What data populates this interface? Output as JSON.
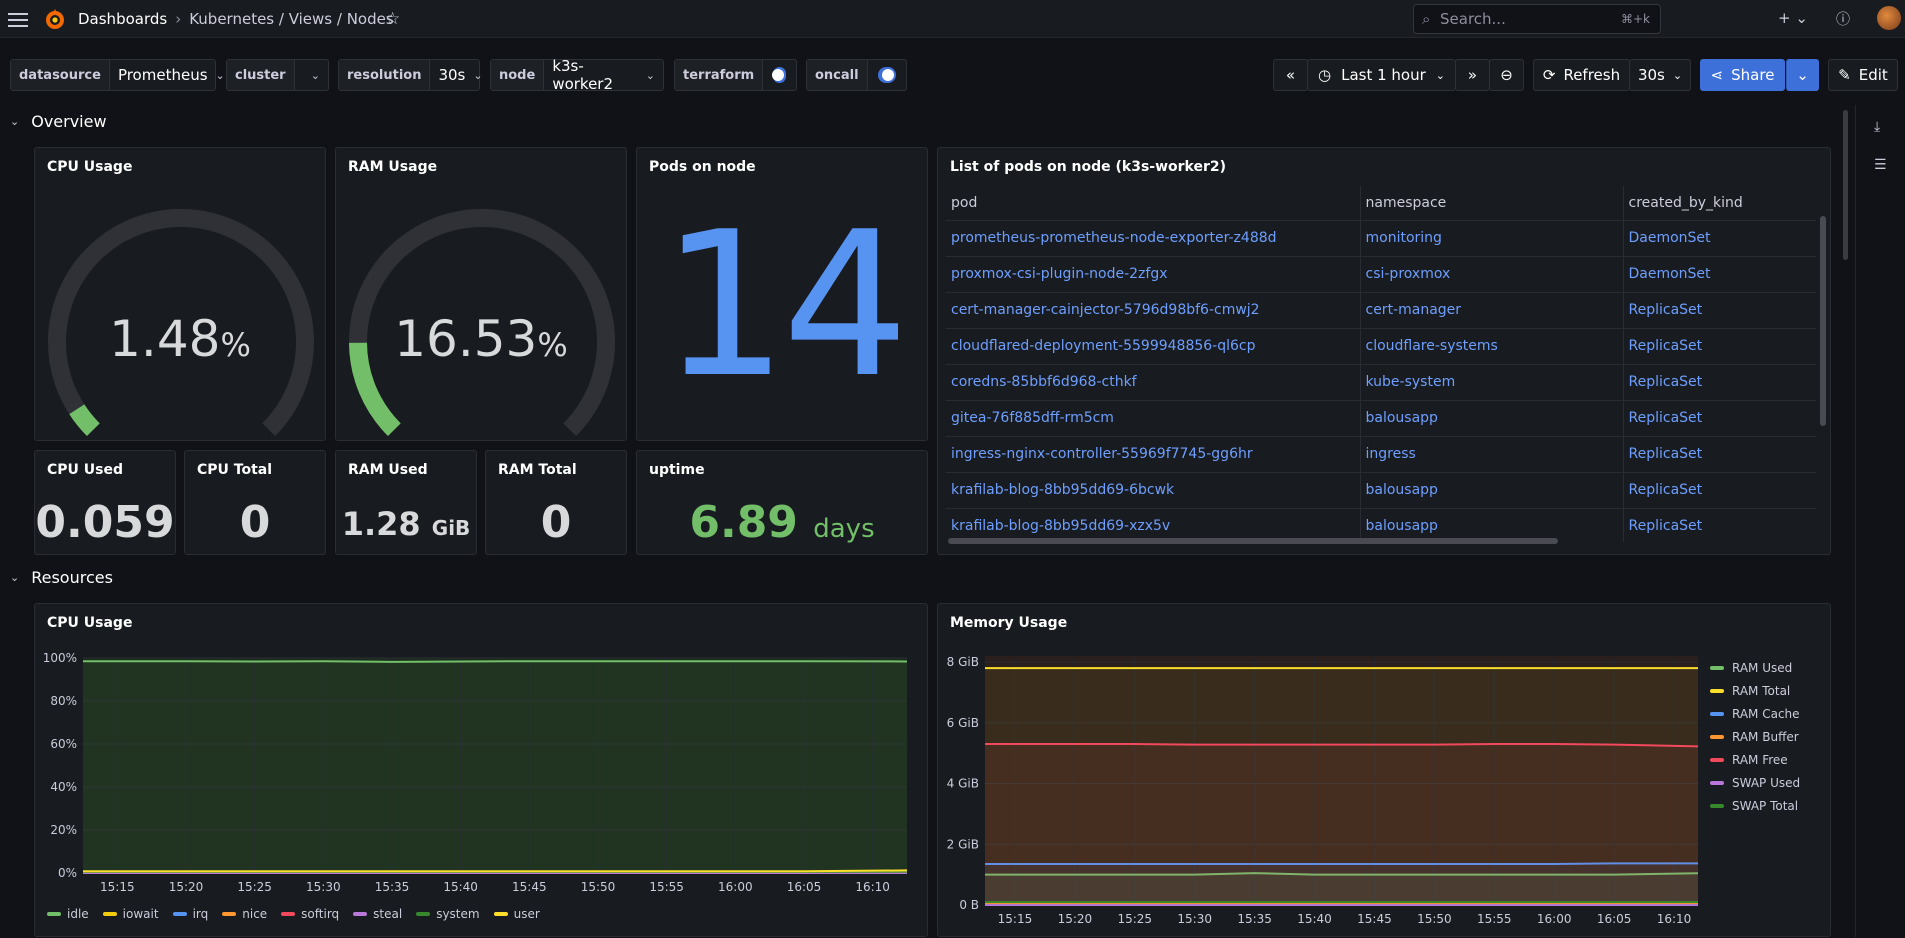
{
  "topbar": {
    "breadcrumb_root": "Dashboards",
    "breadcrumb_path": "Kubernetes / Views / Nodes",
    "search_placeholder": "Search...",
    "search_shortcut": "⌘+k"
  },
  "variables": {
    "datasource": {
      "label": "datasource",
      "value": "Prometheus"
    },
    "cluster": {
      "label": "cluster",
      "value": ""
    },
    "resolution": {
      "label": "resolution",
      "value": "30s"
    },
    "node": {
      "label": "node",
      "value": "k3s-worker2"
    },
    "terraform": {
      "label": "terraform",
      "enabled": true
    },
    "oncall": {
      "label": "oncall",
      "enabled": true
    }
  },
  "toolbar": {
    "time_range": "Last 1 hour",
    "refresh_label": "Refresh",
    "refresh_interval": "30s",
    "share_label": "Share",
    "edit_label": "Edit"
  },
  "rows": {
    "overview": "Overview",
    "resources": "Resources"
  },
  "panels": {
    "cpu_gauge": {
      "title": "CPU Usage",
      "value": "1.48",
      "unit": "%",
      "fraction": 0.0148,
      "color": "#73bf69"
    },
    "ram_gauge": {
      "title": "RAM Usage",
      "value": "16.53",
      "unit": "%",
      "fraction": 0.1653,
      "color": "#73bf69"
    },
    "pods_on_node": {
      "title": "Pods on node",
      "value": "14",
      "color": "#5794f2"
    },
    "cpu_used": {
      "title": "CPU Used",
      "value": "0.059"
    },
    "cpu_total": {
      "title": "CPU Total",
      "value": "0"
    },
    "ram_used": {
      "title": "RAM Used",
      "value": "1.28",
      "unit": "GiB"
    },
    "ram_total": {
      "title": "RAM Total",
      "value": "0"
    },
    "uptime": {
      "title": "uptime",
      "value": "6.89",
      "unit": "days",
      "color": "#73bf69"
    },
    "pods_table": {
      "title": "List of pods on node (k3s-worker2)",
      "columns": [
        "pod",
        "namespace",
        "created_by_kind"
      ],
      "rows": [
        [
          "prometheus-prometheus-node-exporter-z488d",
          "monitoring",
          "DaemonSet"
        ],
        [
          "proxmox-csi-plugin-node-2zfgx",
          "csi-proxmox",
          "DaemonSet"
        ],
        [
          "cert-manager-cainjector-5796d98bf6-cmwj2",
          "cert-manager",
          "ReplicaSet"
        ],
        [
          "cloudflared-deployment-5599948856-ql6cp",
          "cloudflare-systems",
          "ReplicaSet"
        ],
        [
          "coredns-85bbf6d968-cthkf",
          "kube-system",
          "ReplicaSet"
        ],
        [
          "gitea-76f885dff-rm5cm",
          "balousapp",
          "ReplicaSet"
        ],
        [
          "ingress-nginx-controller-55969f7745-gg6hr",
          "ingress",
          "ReplicaSet"
        ],
        [
          "krafilab-blog-8bb95dd69-6bcwk",
          "balousapp",
          "ReplicaSet"
        ],
        [
          "krafilab-blog-8bb95dd69-xzx5v",
          "balousapp",
          "ReplicaSet"
        ]
      ]
    }
  },
  "chart_data": [
    {
      "type": "area",
      "title": "CPU Usage",
      "x": [
        "15:15",
        "15:20",
        "15:25",
        "15:30",
        "15:35",
        "15:40",
        "15:45",
        "15:50",
        "15:55",
        "16:00",
        "16:05",
        "16:10"
      ],
      "y_ticks": [
        "0%",
        "20%",
        "40%",
        "60%",
        "80%",
        "100%"
      ],
      "ylim": [
        0,
        100
      ],
      "series": [
        {
          "name": "idle",
          "color": "#73bf69",
          "values": [
            98.5,
            98.5,
            98.4,
            98.5,
            98.2,
            98.4,
            98.5,
            98.5,
            98.5,
            98.5,
            98.5,
            98.4
          ]
        },
        {
          "name": "iowait",
          "color": "#f2cc0c",
          "values": [
            0.2,
            0.2,
            0.2,
            0.2,
            0.2,
            0.2,
            0.2,
            0.2,
            0.2,
            0.2,
            0.2,
            0.8
          ]
        },
        {
          "name": "irq",
          "color": "#5794f2",
          "values": [
            0,
            0,
            0,
            0,
            0,
            0,
            0,
            0,
            0,
            0,
            0,
            0
          ]
        },
        {
          "name": "nice",
          "color": "#ff9830",
          "values": [
            0,
            0,
            0,
            0,
            0,
            0,
            0,
            0,
            0,
            0,
            0,
            0
          ]
        },
        {
          "name": "softirq",
          "color": "#f2495c",
          "values": [
            0,
            0,
            0,
            0,
            0,
            0,
            0,
            0,
            0,
            0,
            0,
            0
          ]
        },
        {
          "name": "steal",
          "color": "#b877d9",
          "values": [
            0,
            0,
            0,
            0,
            0,
            0,
            0,
            0,
            0,
            0,
            0,
            0
          ]
        },
        {
          "name": "system",
          "color": "#37872d",
          "values": [
            0.5,
            0.5,
            0.5,
            0.5,
            0.5,
            0.5,
            0.5,
            0.5,
            0.5,
            0.5,
            0.5,
            0.6
          ]
        },
        {
          "name": "user",
          "color": "#fade2a",
          "values": [
            0.8,
            0.8,
            0.8,
            0.8,
            0.8,
            0.8,
            0.8,
            0.8,
            0.8,
            0.8,
            0.8,
            1.2
          ]
        }
      ]
    },
    {
      "type": "area",
      "title": "Memory Usage",
      "x": [
        "15:15",
        "15:20",
        "15:25",
        "15:30",
        "15:35",
        "15:40",
        "15:45",
        "15:50",
        "15:55",
        "16:00",
        "16:05",
        "16:10"
      ],
      "y_ticks": [
        "0 B",
        "2 GiB",
        "4 GiB",
        "6 GiB",
        "8 GiB"
      ],
      "ylim": [
        0,
        8.2
      ],
      "series": [
        {
          "name": "RAM Used",
          "color": "#73bf69",
          "values": [
            1.0,
            1.0,
            1.0,
            1.0,
            1.05,
            1.0,
            1.0,
            1.0,
            1.0,
            1.0,
            1.0,
            1.05
          ]
        },
        {
          "name": "RAM Total",
          "color": "#fade2a",
          "values": [
            7.8,
            7.8,
            7.8,
            7.8,
            7.8,
            7.8,
            7.8,
            7.8,
            7.8,
            7.8,
            7.8,
            7.8
          ]
        },
        {
          "name": "RAM Cache",
          "color": "#5794f2",
          "values": [
            1.35,
            1.35,
            1.35,
            1.35,
            1.35,
            1.35,
            1.35,
            1.35,
            1.35,
            1.35,
            1.37,
            1.37
          ]
        },
        {
          "name": "RAM Buffer",
          "color": "#ff9830",
          "values": [
            0.05,
            0.05,
            0.05,
            0.05,
            0.05,
            0.05,
            0.05,
            0.05,
            0.05,
            0.05,
            0.05,
            0.05
          ]
        },
        {
          "name": "RAM Free",
          "color": "#f2495c",
          "values": [
            5.3,
            5.3,
            5.3,
            5.28,
            5.28,
            5.28,
            5.28,
            5.28,
            5.3,
            5.3,
            5.28,
            5.22
          ]
        },
        {
          "name": "SWAP Used",
          "color": "#b877d9",
          "values": [
            0,
            0,
            0,
            0,
            0,
            0,
            0,
            0,
            0,
            0,
            0,
            0
          ]
        },
        {
          "name": "SWAP Total",
          "color": "#37872d",
          "values": [
            0.1,
            0.1,
            0.1,
            0.1,
            0.1,
            0.1,
            0.1,
            0.1,
            0.1,
            0.1,
            0.1,
            0.1
          ]
        }
      ]
    }
  ]
}
